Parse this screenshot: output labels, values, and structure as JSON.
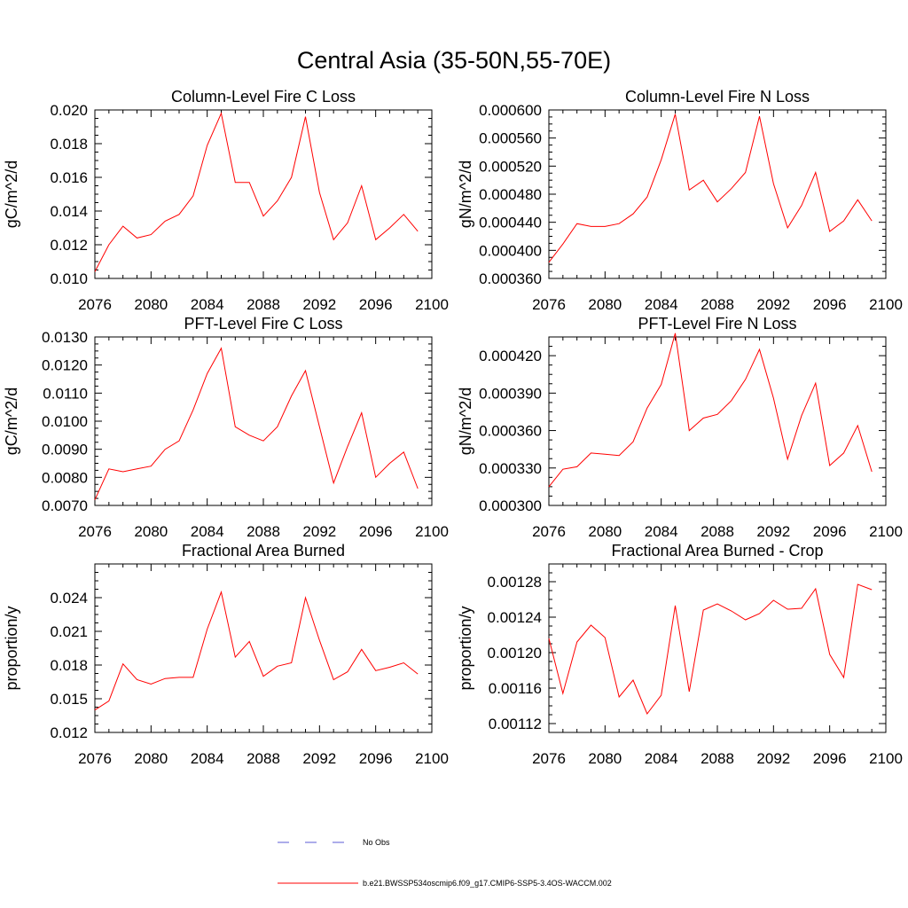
{
  "figure": {
    "title": "Central Asia (35-50N,55-70E)"
  },
  "legend": [
    {
      "label": "No Obs",
      "color": "#5b5bd6",
      "dash": "dashed"
    },
    {
      "label": "b.e21.BWSSP534oscmip6.f09_g17.CMIP6-SSP5-3.4OS-WACCM.002",
      "color": "#ff0000",
      "dash": "solid"
    }
  ],
  "chart_data": [
    {
      "type": "line",
      "title": "Column-Level Fire C Loss",
      "ylabel": "gC/m^2/d",
      "xlabel": "",
      "xlim": [
        2076,
        2100
      ],
      "ylim": [
        0.01,
        0.02
      ],
      "xticks": [
        "2076",
        "2080",
        "2084",
        "2088",
        "2092",
        "2096",
        "2100"
      ],
      "yticks": [
        "0.010",
        "0.012",
        "0.014",
        "0.016",
        "0.018",
        "0.020"
      ],
      "x": [
        2076,
        2077,
        2078,
        2079,
        2080,
        2081,
        2082,
        2083,
        2084,
        2085,
        2086,
        2087,
        2088,
        2089,
        2090,
        2091,
        2092,
        2093,
        2094,
        2095,
        2096,
        2097,
        2098,
        2099
      ],
      "series": [
        {
          "name": "b.e21.BWSSP534oscmip6.f09_g17.CMIP6-SSP5-3.4OS-WACCM.002",
          "color": "#ff0000",
          "values": [
            0.0104,
            0.012,
            0.0131,
            0.0124,
            0.0126,
            0.0134,
            0.0138,
            0.0149,
            0.0179,
            0.0198,
            0.0157,
            0.0157,
            0.0137,
            0.0146,
            0.016,
            0.0196,
            0.0151,
            0.0123,
            0.0133,
            0.0155,
            0.0123,
            0.013,
            0.0138,
            0.0128
          ]
        }
      ]
    },
    {
      "type": "line",
      "title": "Column-Level Fire N Loss",
      "ylabel": "gN/m^2/d",
      "xlabel": "",
      "xlim": [
        2076,
        2100
      ],
      "ylim": [
        0.00036,
        0.0006
      ],
      "xticks": [
        "2076",
        "2080",
        "2084",
        "2088",
        "2092",
        "2096",
        "2100"
      ],
      "yticks": [
        "0.000360",
        "0.000400",
        "0.000440",
        "0.000480",
        "0.000520",
        "0.000560",
        "0.000600"
      ],
      "x": [
        2076,
        2077,
        2078,
        2079,
        2080,
        2081,
        2082,
        2083,
        2084,
        2085,
        2086,
        2087,
        2088,
        2089,
        2090,
        2091,
        2092,
        2093,
        2094,
        2095,
        2096,
        2097,
        2098,
        2099
      ],
      "series": [
        {
          "name": "b.e21.BWSSP534oscmip6.f09_g17.CMIP6-SSP5-3.4OS-WACCM.002",
          "color": "#ff0000",
          "values": [
            0.000383,
            0.000409,
            0.000438,
            0.000434,
            0.000434,
            0.000438,
            0.000452,
            0.000476,
            0.000529,
            0.000594,
            0.000486,
            0.0005,
            0.000469,
            0.000488,
            0.000511,
            0.000591,
            0.000495,
            0.000432,
            0.000464,
            0.000511,
            0.000427,
            0.000442,
            0.000472,
            0.000442
          ]
        }
      ]
    },
    {
      "type": "line",
      "title": "PFT-Level Fire C Loss",
      "ylabel": "gC/m^2/d",
      "xlabel": "",
      "xlim": [
        2076,
        2100
      ],
      "ylim": [
        0.007,
        0.013
      ],
      "xticks": [
        "2076",
        "2080",
        "2084",
        "2088",
        "2092",
        "2096",
        "2100"
      ],
      "yticks": [
        "0.0070",
        "0.0080",
        "0.0090",
        "0.0100",
        "0.0110",
        "0.0120",
        "0.0130"
      ],
      "x": [
        2076,
        2077,
        2078,
        2079,
        2080,
        2081,
        2082,
        2083,
        2084,
        2085,
        2086,
        2087,
        2088,
        2089,
        2090,
        2091,
        2092,
        2093,
        2094,
        2095,
        2096,
        2097,
        2098,
        2099
      ],
      "series": [
        {
          "name": "b.e21.BWSSP534oscmip6.f09_g17.CMIP6-SSP5-3.4OS-WACCM.002",
          "color": "#ff0000",
          "values": [
            0.0072,
            0.0083,
            0.0082,
            0.0083,
            0.0084,
            0.009,
            0.0093,
            0.0104,
            0.0117,
            0.0126,
            0.0098,
            0.0095,
            0.0093,
            0.0098,
            0.0109,
            0.0118,
            0.0098,
            0.0078,
            0.0091,
            0.0103,
            0.008,
            0.0085,
            0.0089,
            0.0076
          ]
        }
      ]
    },
    {
      "type": "line",
      "title": "PFT-Level Fire N Loss",
      "ylabel": "gN/m^2/d",
      "xlabel": "",
      "xlim": [
        2076,
        2100
      ],
      "ylim": [
        0.0003,
        0.000435
      ],
      "xticks": [
        "2076",
        "2080",
        "2084",
        "2088",
        "2092",
        "2096",
        "2100"
      ],
      "yticks": [
        "0.000300",
        "0.000330",
        "0.000360",
        "0.000390",
        "0.000420"
      ],
      "x": [
        2076,
        2077,
        2078,
        2079,
        2080,
        2081,
        2082,
        2083,
        2084,
        2085,
        2086,
        2087,
        2088,
        2089,
        2090,
        2091,
        2092,
        2093,
        2094,
        2095,
        2096,
        2097,
        2098,
        2099
      ],
      "series": [
        {
          "name": "b.e21.BWSSP534oscmip6.f09_g17.CMIP6-SSP5-3.4OS-WACCM.002",
          "color": "#ff0000",
          "values": [
            0.000315,
            0.000329,
            0.000331,
            0.000342,
            0.000341,
            0.00034,
            0.000351,
            0.000378,
            0.000397,
            0.000438,
            0.00036,
            0.00037,
            0.000373,
            0.000384,
            0.000401,
            0.000425,
            0.000386,
            0.000337,
            0.000372,
            0.000398,
            0.000332,
            0.000342,
            0.000364,
            0.000327
          ]
        }
      ]
    },
    {
      "type": "line",
      "title": "Fractional Area Burned",
      "ylabel": "proportion/y",
      "xlabel": "",
      "xlim": [
        2076,
        2100
      ],
      "ylim": [
        0.012,
        0.027
      ],
      "xticks": [
        "2076",
        "2080",
        "2084",
        "2088",
        "2092",
        "2096",
        "2100"
      ],
      "yticks": [
        "0.012",
        "0.015",
        "0.018",
        "0.021",
        "0.024"
      ],
      "x": [
        2076,
        2077,
        2078,
        2079,
        2080,
        2081,
        2082,
        2083,
        2084,
        2085,
        2086,
        2087,
        2088,
        2089,
        2090,
        2091,
        2092,
        2093,
        2094,
        2095,
        2096,
        2097,
        2098,
        2099
      ],
      "series": [
        {
          "name": "b.e21.BWSSP534oscmip6.f09_g17.CMIP6-SSP5-3.4OS-WACCM.002",
          "color": "#ff0000",
          "values": [
            0.014,
            0.0148,
            0.0181,
            0.0167,
            0.0163,
            0.0168,
            0.0169,
            0.0169,
            0.0212,
            0.0245,
            0.0187,
            0.0201,
            0.017,
            0.0179,
            0.0182,
            0.024,
            0.0202,
            0.0167,
            0.0174,
            0.0194,
            0.0175,
            0.0178,
            0.0182,
            0.0172
          ]
        }
      ]
    },
    {
      "type": "line",
      "title": "Fractional Area Burned - Crop",
      "ylabel": "proportion/y",
      "xlabel": "",
      "xlim": [
        2076,
        2100
      ],
      "ylim": [
        0.00111,
        0.0013
      ],
      "xticks": [
        "2076",
        "2080",
        "2084",
        "2088",
        "2092",
        "2096",
        "2100"
      ],
      "yticks": [
        "0.00112",
        "0.00116",
        "0.00120",
        "0.00124",
        "0.00128"
      ],
      "x": [
        2076,
        2077,
        2078,
        2079,
        2080,
        2081,
        2082,
        2083,
        2084,
        2085,
        2086,
        2087,
        2088,
        2089,
        2090,
        2091,
        2092,
        2093,
        2094,
        2095,
        2096,
        2097,
        2098,
        2099
      ],
      "series": [
        {
          "name": "b.e21.BWSSP534oscmip6.f09_g17.CMIP6-SSP5-3.4OS-WACCM.002",
          "color": "#ff0000",
          "values": [
            0.001216,
            0.001154,
            0.001212,
            0.001231,
            0.001217,
            0.00115,
            0.001169,
            0.001131,
            0.001152,
            0.001253,
            0.001156,
            0.001248,
            0.001255,
            0.001247,
            0.001237,
            0.001244,
            0.001259,
            0.001249,
            0.00125,
            0.001272,
            0.001198,
            0.001172,
            0.001277,
            0.001271
          ]
        }
      ]
    }
  ]
}
